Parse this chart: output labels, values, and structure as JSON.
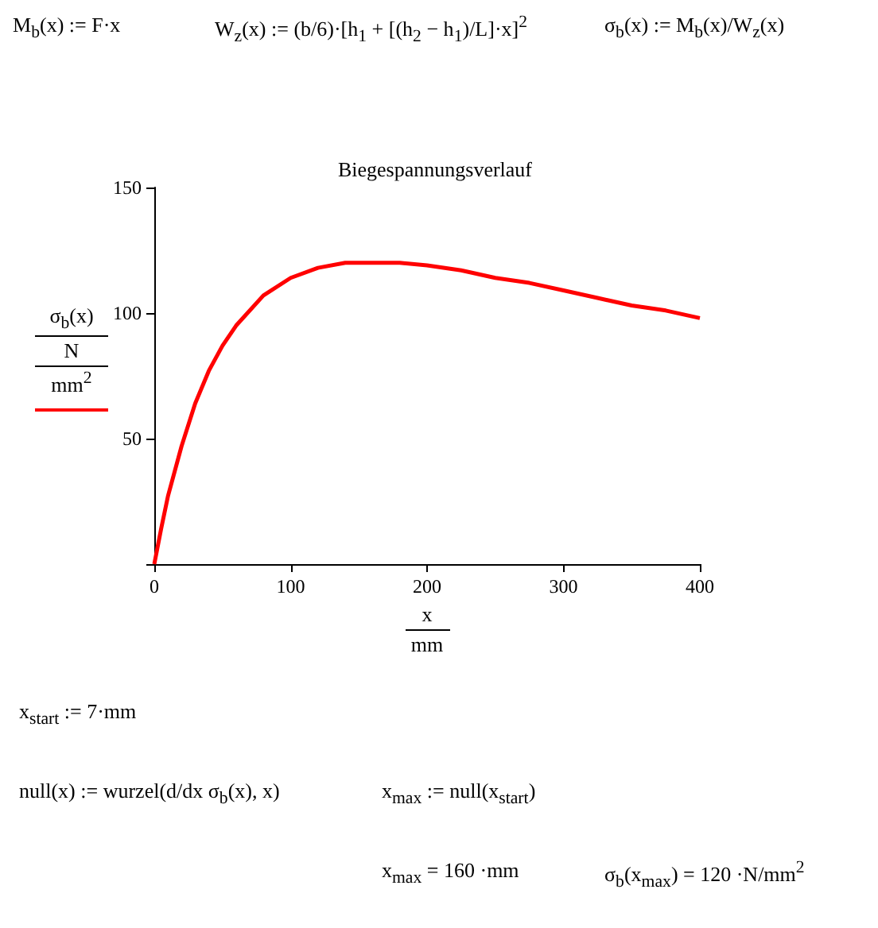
{
  "chart_data": {
    "type": "line",
    "title": "Biegespannungsverlauf",
    "xlabel": "x\nmm",
    "ylabel": "σ$_{b}$(x)\nN\nmm$^{2}$",
    "x": [
      0,
      5,
      10,
      20,
      30,
      40,
      50,
      60,
      80,
      100,
      120,
      140,
      160,
      180,
      200,
      225,
      250,
      275,
      300,
      325,
      350,
      375,
      400
    ],
    "series": [
      {
        "color": "#ff0000",
        "values": [
          0,
          14,
          27,
          47,
          64,
          77,
          87,
          95,
          107,
          114,
          118,
          120,
          120,
          120,
          119,
          117,
          114,
          112,
          109,
          106,
          103,
          101,
          98
        ]
      }
    ],
    "xlim": [
      0,
      400
    ],
    "xticks": [
      0,
      100,
      200,
      300,
      400
    ],
    "ylim": [
      0,
      150
    ],
    "yticks": [
      {
        "value": 0,
        "label": null
      },
      50,
      100,
      150
    ],
    "grid": false,
    "marker": "none",
    "line_style": "solid",
    "annotations": [
      "M$_{b}$(x) := F·x",
      "W$_{z}$(x) := (b/6)·[h$_{1}$ + [(h$_{2}$ − h$_{1}$)/L]·x]$^{2}$",
      "σ$_{b}$(x) := M$_{b}$(x)/W$_{z}$(x)",
      "x$_{start}$ := 7·mm",
      "null(x) := wurzel(d/dx σ$_{b}$(x), x)",
      "x$_{max}$ := null(x$_{start}$)",
      "x$_{max}$ = 160 ·mm",
      "σ$_{b}$(x$_{max}$) = 120 ·N/mm$^{2}$"
    ]
  }
}
